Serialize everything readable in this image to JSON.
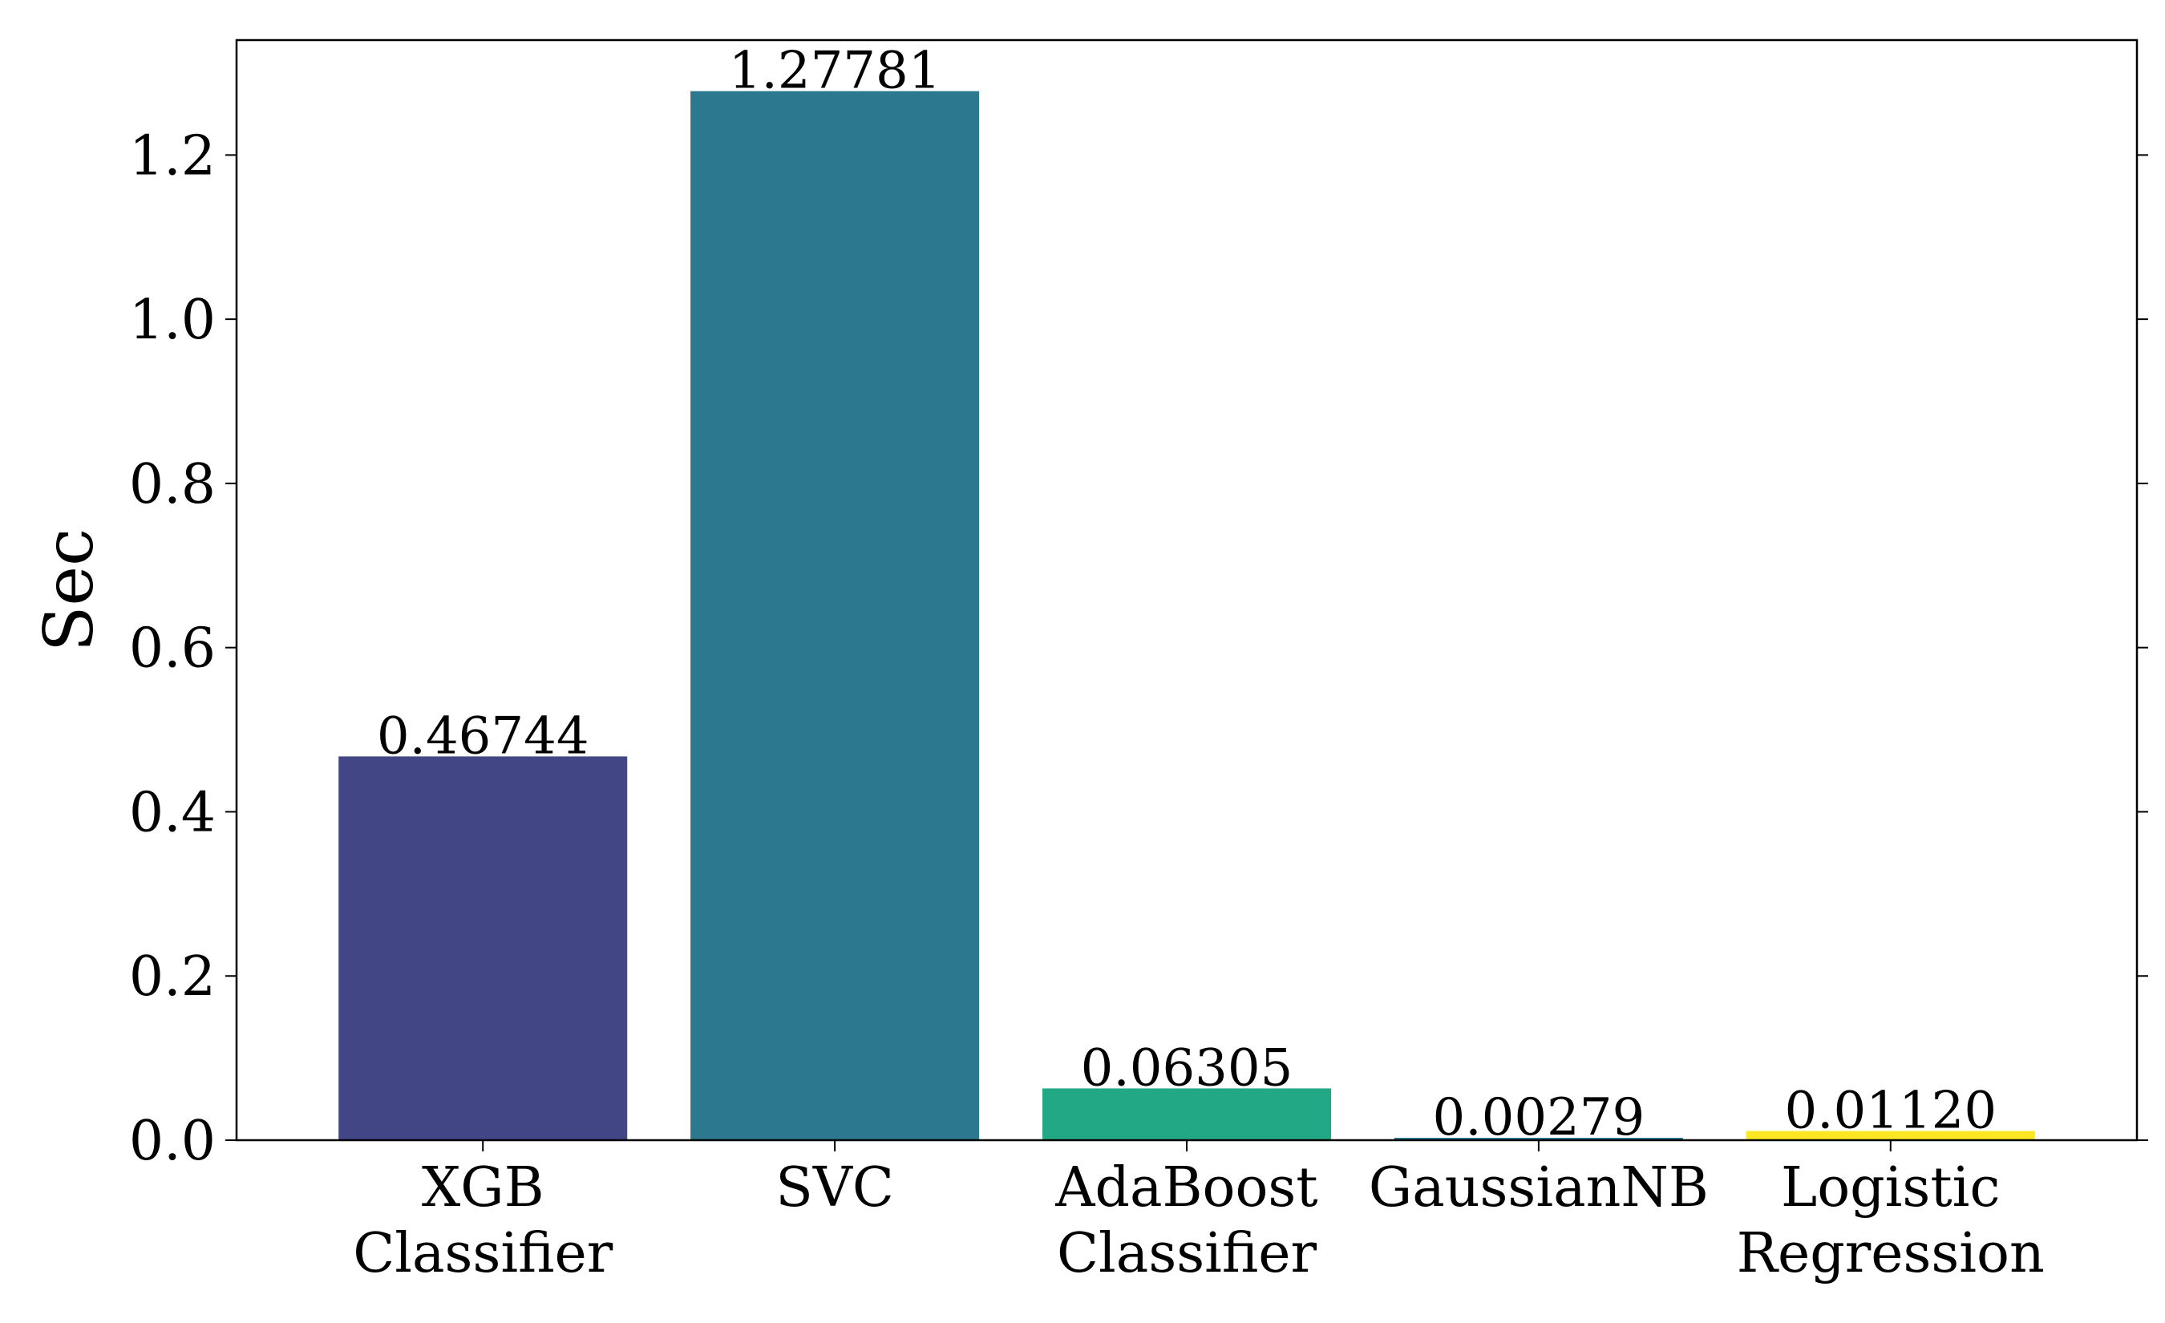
{
  "chart_data": {
    "type": "bar",
    "title": "",
    "xlabel": "",
    "ylabel": "Sec",
    "ylim": [
      0,
      1.34
    ],
    "yticks": [
      0.0,
      0.2,
      0.4,
      0.6,
      0.8,
      1.0,
      1.2
    ],
    "ytick_labels": [
      "0.0",
      "0.2",
      "0.4",
      "0.6",
      "0.8",
      "1.0",
      "1.2"
    ],
    "grid": false,
    "categories": [
      [
        "XGB",
        "Classifier"
      ],
      [
        "SVC"
      ],
      [
        "AdaBoost",
        "Classifier"
      ],
      [
        "GaussianNB"
      ],
      [
        "Logistic",
        "Regression"
      ]
    ],
    "values": [
      0.46744,
      1.27781,
      0.06305,
      0.00279,
      0.0112
    ],
    "value_labels": [
      "0.46744",
      "1.27781",
      "0.06305",
      "0.00279",
      "0.01120"
    ],
    "colors": [
      "#424685",
      "#2C788E",
      "#22A884",
      "#2A788E",
      "#FDE725"
    ]
  }
}
